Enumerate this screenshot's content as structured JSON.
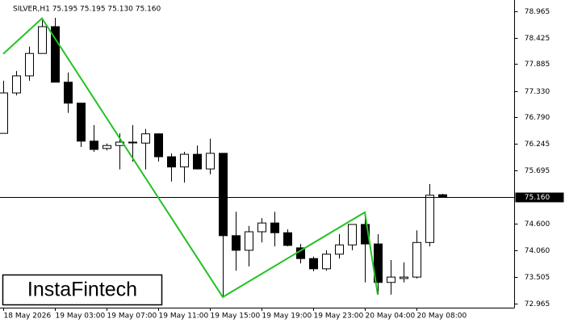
{
  "chart_data": {
    "type": "candlestick",
    "header": "SILVER,H1  75.195 75.195 75.130 75.160",
    "watermark": "InstaFintech",
    "categories": [
      "18 May 2026",
      null,
      null,
      null,
      "19 May 03:00",
      null,
      null,
      null,
      "19 May 07:00",
      null,
      null,
      null,
      "19 May 11:00",
      null,
      null,
      null,
      "19 May 15:00",
      null,
      null,
      null,
      "19 May 19:00",
      null,
      null,
      null,
      "19 May 23:00",
      null,
      null,
      null,
      "20 May 04:00",
      null,
      null,
      null,
      "20 May 08:00",
      null,
      null
    ],
    "open": [
      76.46,
      77.29,
      77.64,
      78.1,
      78.65,
      77.51,
      77.08,
      76.3,
      76.15,
      76.21,
      76.28,
      76.26,
      76.45,
      75.98,
      75.77,
      76.03,
      75.73,
      76.05,
      74.36,
      74.06,
      74.44,
      74.62,
      74.42,
      74.11,
      73.89,
      73.68,
      73.98,
      74.17,
      74.59,
      74.19,
      73.4,
      73.48,
      73.51,
      74.22,
      75.2
    ],
    "high": [
      77.54,
      77.74,
      78.24,
      78.83,
      78.83,
      77.71,
      77.08,
      76.63,
      76.25,
      76.46,
      76.63,
      76.55,
      76.46,
      76.05,
      76.08,
      76.21,
      76.35,
      76.05,
      74.85,
      74.56,
      74.72,
      74.85,
      74.49,
      74.19,
      73.93,
      74.06,
      74.39,
      74.59,
      74.72,
      74.39,
      73.86,
      73.81,
      74.47,
      75.42,
      75.22
    ],
    "low": [
      76.46,
      77.24,
      77.54,
      78.1,
      77.51,
      76.88,
      76.18,
      76.08,
      76.11,
      75.72,
      75.88,
      75.72,
      75.88,
      75.47,
      75.45,
      75.72,
      75.62,
      73.1,
      73.64,
      73.73,
      74.22,
      74.14,
      74.14,
      73.79,
      73.63,
      73.64,
      73.89,
      74.06,
      73.4,
      73.15,
      73.15,
      73.4,
      73.48,
      74.14,
      75.14
    ],
    "close": [
      77.29,
      77.64,
      78.1,
      78.65,
      77.51,
      77.08,
      76.3,
      76.13,
      76.21,
      76.28,
      76.28,
      76.45,
      75.98,
      75.77,
      76.03,
      75.73,
      76.05,
      74.36,
      74.06,
      74.44,
      74.62,
      74.42,
      74.16,
      73.89,
      73.68,
      73.98,
      74.17,
      74.59,
      74.19,
      73.4,
      73.51,
      73.51,
      74.22,
      75.19,
      75.16
    ],
    "up_color": "#ffffff",
    "down_color": "#000000",
    "zigzag": {
      "color": "#22c322",
      "x": [
        0,
        3,
        17,
        28,
        29
      ],
      "values": [
        78.09,
        78.82,
        73.1,
        74.84,
        73.15
      ]
    },
    "current_price": {
      "value": 75.16,
      "label": "75.160"
    },
    "ylim": [
      72.965,
      78.965
    ],
    "yticks": [
      78.965,
      78.425,
      77.885,
      {
        "value": 77.33,
        "label": "77.330"
      },
      {
        "value": 76.79,
        "label": "76.790"
      },
      76.245,
      75.695,
      {
        "value": 74.6,
        "label": "74.600"
      },
      {
        "value": 74.06,
        "label": "74.060"
      },
      73.505,
      72.965
    ]
  }
}
